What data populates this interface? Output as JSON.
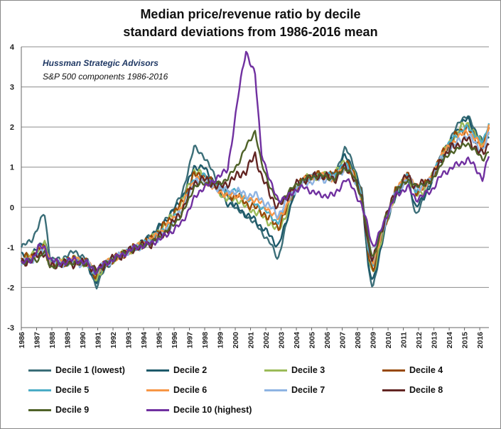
{
  "chart_data": {
    "type": "line",
    "title": "Median price/revenue ratio by decile",
    "subtitle": "standard deviations from 1986-2016 mean",
    "annotations": [
      "Hussman Strategic Advisors",
      "S&P 500 components 1986-2016"
    ],
    "x_tick_labels": [
      "1986",
      "1987",
      "1988",
      "1989",
      "1990",
      "1991",
      "1992",
      "1993",
      "1994",
      "1995",
      "1996",
      "1997",
      "1998",
      "1999",
      "2000",
      "2001",
      "2002",
      "2003",
      "2004",
      "2005",
      "2006",
      "2007",
      "2008",
      "2009",
      "2010",
      "2011",
      "2012",
      "2013",
      "2014",
      "2015",
      "2016"
    ],
    "y_tick_labels": [
      "4",
      "3",
      "2",
      "1",
      "0",
      "-1",
      "-2",
      "-3"
    ],
    "xlim": [
      1986,
      2016.6
    ],
    "ylim": [
      -3,
      4
    ],
    "grid": true,
    "legend_position": "bottom",
    "anchor_years": [
      1986.0,
      1986.7,
      1987.1,
      1987.5,
      1987.9,
      1988.5,
      1989.5,
      1990.3,
      1990.9,
      1991.5,
      1992.5,
      1993.5,
      1994.5,
      1995.5,
      1996.5,
      1997.3,
      1997.9,
      1998.5,
      1998.9,
      1999.5,
      2000.2,
      2000.7,
      2001.3,
      2001.7,
      2002.3,
      2002.8,
      2003.3,
      2003.8,
      2004.5,
      2005.5,
      2006.5,
      2007.2,
      2007.7,
      2008.3,
      2008.7,
      2009.0,
      2009.3,
      2009.8,
      2010.5,
      2011.3,
      2011.8,
      2012.3,
      2012.8,
      2013.5,
      2014.2,
      2014.8,
      2015.2,
      2015.7,
      2016.2,
      2016.6
    ],
    "series": [
      {
        "name": "Decile 1 (lowest)",
        "color": "#3b6e78",
        "values": [
          -1.0,
          -0.8,
          -0.5,
          -0.1,
          -1.3,
          -1.3,
          -1.1,
          -1.3,
          -2.0,
          -1.5,
          -1.2,
          -1.0,
          -0.7,
          -0.3,
          0.3,
          1.5,
          1.3,
          0.9,
          0.6,
          0.3,
          -0.1,
          -0.2,
          -0.4,
          -0.6,
          -0.9,
          -1.3,
          -0.5,
          0.3,
          0.7,
          0.8,
          0.8,
          1.5,
          1.1,
          0.4,
          -1.5,
          -2.0,
          -1.5,
          -0.5,
          0.3,
          0.7,
          -0.2,
          0.2,
          0.6,
          1.3,
          1.8,
          2.2,
          2.3,
          1.9,
          1.6,
          1.7
        ]
      },
      {
        "name": "Decile 2",
        "color": "#1e5a6a",
        "values": [
          -1.2,
          -1.2,
          -1.0,
          -0.8,
          -1.4,
          -1.4,
          -1.3,
          -1.4,
          -1.9,
          -1.4,
          -1.2,
          -1.0,
          -0.7,
          -0.3,
          0.2,
          1.0,
          1.0,
          0.7,
          0.4,
          0.1,
          0.0,
          -0.2,
          -0.3,
          -0.5,
          -0.7,
          -1.0,
          -0.4,
          0.3,
          0.7,
          0.8,
          0.8,
          1.3,
          1.0,
          0.3,
          -1.4,
          -1.9,
          -1.4,
          -0.5,
          0.3,
          0.7,
          0.0,
          0.2,
          0.6,
          1.2,
          1.7,
          2.1,
          2.2,
          1.9,
          1.6,
          1.8
        ]
      },
      {
        "name": "Decile 3",
        "color": "#9bbb59",
        "values": [
          -1.3,
          -1.2,
          -1.1,
          -0.9,
          -1.4,
          -1.4,
          -1.3,
          -1.4,
          -1.8,
          -1.4,
          -1.2,
          -1.0,
          -0.8,
          -0.4,
          0.1,
          0.9,
          0.8,
          0.6,
          0.4,
          0.2,
          0.2,
          0.0,
          -0.1,
          -0.2,
          -0.4,
          -0.6,
          -0.2,
          0.4,
          0.7,
          0.8,
          0.8,
          1.2,
          0.9,
          0.3,
          -1.2,
          -1.7,
          -1.2,
          -0.5,
          0.4,
          0.8,
          0.3,
          0.4,
          0.7,
          1.3,
          1.7,
          2.0,
          2.1,
          1.8,
          1.6,
          1.9
        ]
      },
      {
        "name": "Decile 4",
        "color": "#974806",
        "values": [
          -1.3,
          -1.2,
          -1.1,
          -1.0,
          -1.4,
          -1.4,
          -1.3,
          -1.4,
          -1.7,
          -1.4,
          -1.2,
          -1.0,
          -0.8,
          -0.4,
          0.1,
          0.8,
          0.8,
          0.6,
          0.5,
          0.3,
          0.3,
          0.1,
          0.0,
          -0.1,
          -0.3,
          -0.5,
          -0.1,
          0.4,
          0.7,
          0.8,
          0.8,
          1.1,
          0.9,
          0.3,
          -1.1,
          -1.6,
          -1.1,
          -0.4,
          0.4,
          0.8,
          0.4,
          0.5,
          0.7,
          1.3,
          1.7,
          1.9,
          2.0,
          1.7,
          1.5,
          2.0
        ]
      },
      {
        "name": "Decile 5",
        "color": "#4bacc6",
        "values": [
          -1.3,
          -1.3,
          -1.2,
          -1.0,
          -1.4,
          -1.4,
          -1.3,
          -1.4,
          -1.7,
          -1.4,
          -1.2,
          -1.0,
          -0.8,
          -0.5,
          0.0,
          0.7,
          0.8,
          0.6,
          0.5,
          0.4,
          0.4,
          0.2,
          0.1,
          0.0,
          -0.2,
          -0.4,
          0.0,
          0.4,
          0.7,
          0.8,
          0.8,
          1.1,
          0.8,
          0.3,
          -1.0,
          -1.5,
          -1.0,
          -0.4,
          0.4,
          0.8,
          0.4,
          0.5,
          0.7,
          1.3,
          1.7,
          1.9,
          2.0,
          1.8,
          1.6,
          2.1
        ]
      },
      {
        "name": "Decile 6",
        "color": "#f79646",
        "values": [
          -1.3,
          -1.3,
          -1.2,
          -1.0,
          -1.4,
          -1.4,
          -1.3,
          -1.4,
          -1.6,
          -1.4,
          -1.2,
          -1.0,
          -0.8,
          -0.5,
          0.0,
          0.7,
          0.7,
          0.5,
          0.4,
          0.3,
          0.3,
          0.2,
          0.2,
          0.1,
          -0.1,
          -0.3,
          0.0,
          0.4,
          0.7,
          0.8,
          0.7,
          1.0,
          0.8,
          0.2,
          -0.9,
          -1.4,
          -1.0,
          -0.4,
          0.4,
          0.8,
          0.5,
          0.5,
          0.7,
          1.3,
          1.6,
          1.8,
          1.9,
          1.7,
          1.5,
          2.0
        ]
      },
      {
        "name": "Decile 7",
        "color": "#8eb4e3",
        "values": [
          -1.4,
          -1.3,
          -1.2,
          -1.1,
          -1.4,
          -1.4,
          -1.4,
          -1.4,
          -1.6,
          -1.4,
          -1.2,
          -1.0,
          -0.9,
          -0.6,
          -0.1,
          0.6,
          0.7,
          0.5,
          0.5,
          0.4,
          0.4,
          0.3,
          0.3,
          0.2,
          0.0,
          -0.2,
          0.1,
          0.4,
          0.6,
          0.7,
          0.7,
          1.0,
          0.8,
          0.2,
          -0.8,
          -1.3,
          -0.9,
          -0.4,
          0.4,
          0.7,
          0.5,
          0.5,
          0.7,
          1.2,
          1.5,
          1.7,
          1.8,
          1.6,
          1.4,
          1.8
        ]
      },
      {
        "name": "Decile 8",
        "color": "#632523",
        "values": [
          -1.4,
          -1.3,
          -1.2,
          -1.1,
          -1.5,
          -1.4,
          -1.4,
          -1.4,
          -1.6,
          -1.4,
          -1.2,
          -1.0,
          -0.9,
          -0.6,
          -0.1,
          0.6,
          0.7,
          0.6,
          0.5,
          0.6,
          0.8,
          0.9,
          1.3,
          0.8,
          0.3,
          0.0,
          0.2,
          0.5,
          0.7,
          0.8,
          0.7,
          1.0,
          0.8,
          0.2,
          -0.9,
          -1.4,
          -0.9,
          -0.3,
          0.4,
          0.8,
          0.5,
          0.6,
          0.7,
          1.2,
          1.5,
          1.6,
          1.7,
          1.5,
          1.3,
          1.6
        ]
      },
      {
        "name": "Decile 9",
        "color": "#4f6228",
        "values": [
          -1.4,
          -1.3,
          -1.3,
          -1.1,
          -1.5,
          -1.4,
          -1.4,
          -1.4,
          -1.6,
          -1.4,
          -1.2,
          -1.0,
          -0.9,
          -0.6,
          -0.2,
          0.5,
          0.6,
          0.6,
          0.6,
          0.7,
          1.1,
          1.5,
          1.9,
          1.1,
          0.5,
          0.1,
          0.3,
          0.5,
          0.7,
          0.8,
          0.7,
          1.0,
          0.8,
          0.2,
          -0.8,
          -1.3,
          -0.9,
          -0.3,
          0.4,
          0.7,
          0.5,
          0.6,
          0.6,
          1.1,
          1.4,
          1.5,
          1.6,
          1.4,
          1.2,
          1.4
        ]
      },
      {
        "name": "Decile 10 (highest)",
        "color": "#7030a0",
        "values": [
          -1.4,
          -1.3,
          -1.0,
          -1.0,
          -1.3,
          -1.4,
          -1.3,
          -1.4,
          -1.6,
          -1.4,
          -1.2,
          -1.0,
          -0.9,
          -0.7,
          -0.4,
          0.2,
          0.5,
          0.6,
          0.8,
          0.9,
          2.8,
          3.9,
          3.3,
          1.4,
          0.6,
          0.2,
          0.2,
          0.4,
          0.5,
          0.3,
          0.3,
          0.7,
          0.5,
          0.0,
          -0.5,
          -1.0,
          -0.8,
          -0.3,
          0.3,
          0.5,
          0.2,
          0.3,
          0.4,
          0.8,
          1.0,
          1.1,
          1.2,
          1.0,
          0.7,
          1.3
        ]
      }
    ]
  }
}
